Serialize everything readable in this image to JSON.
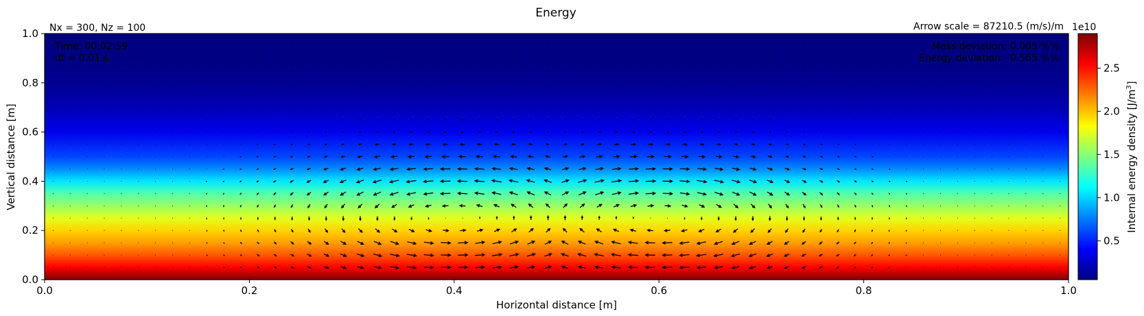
{
  "chart_data": {
    "type": "heatmap",
    "title": "Energy",
    "xlabel": "Horizontal distance [m]",
    "ylabel": "Vertical distance [m]",
    "xlim": [
      0.0,
      1.0
    ],
    "ylim": [
      0.0,
      1.0
    ],
    "x_ticks": [
      "0.0",
      "0.2",
      "0.4",
      "0.6",
      "0.8",
      "1.0"
    ],
    "y_ticks": [
      "0.0",
      "0.2",
      "0.4",
      "0.6",
      "0.8",
      "1.0"
    ],
    "grid": false,
    "colormap": "jet",
    "colorbar": {
      "label": "Internal energy density [J/m",
      "label_sup": "3",
      "label_end": "]",
      "multiplier": "1e10",
      "ticks": [
        "0.5",
        "1.0",
        "1.5",
        "2.0",
        "2.5"
      ],
      "range": [
        0.05,
        2.9
      ]
    },
    "field_profile": {
      "description_units": "internal energy density (x1e10 J/m^3) versus height (m)",
      "z": [
        0.0,
        0.05,
        0.1,
        0.15,
        0.2,
        0.25,
        0.3,
        0.35,
        0.4,
        0.45,
        0.5,
        0.6,
        0.7,
        0.8,
        0.9,
        1.0
      ],
      "value": [
        2.9,
        2.55,
        2.3,
        2.1,
        1.95,
        1.75,
        1.55,
        1.35,
        1.05,
        0.8,
        0.6,
        0.35,
        0.2,
        0.1,
        0.06,
        0.05
      ]
    },
    "velocity_field": {
      "type": "quiver",
      "arrow_scale_text": "Arrow scale = 87210.5 (m/s)/m",
      "vortex_centers_x": [
        0.4,
        0.6
      ],
      "vortex_center_z": 0.25,
      "upflow_x": 0.5
    },
    "annotations": {
      "grid_info": "Nx = 300, Nz = 100",
      "time": "Time: 00:02:59",
      "dt": "dt = 0.01 s",
      "mass_deviation": "Mass deviation: 0.005 %%",
      "energy_deviation": "Energy deviation: -0.565 %%"
    }
  },
  "colors": {
    "jet_stops": [
      "#00007f",
      "#0000ff",
      "#007fff",
      "#00ffff",
      "#7fff7f",
      "#ffff00",
      "#ff7f00",
      "#ff0000",
      "#7f0000"
    ],
    "arrow": "#000000",
    "axis": "#000000"
  }
}
